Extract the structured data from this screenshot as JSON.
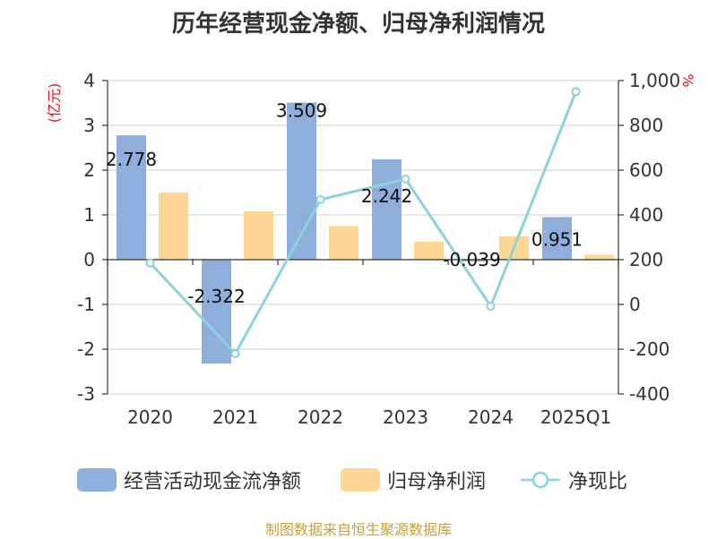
{
  "title": "历年经营现金净额、归母净利润情况",
  "source": "制图数据来自恒生聚源数据库",
  "chart_data": {
    "type": "bar",
    "categories": [
      "2020",
      "2021",
      "2022",
      "2023",
      "2024",
      "2025Q1"
    ],
    "series": [
      {
        "name": "经营活动现金流净额",
        "type": "bar",
        "axis": "left",
        "color": "#8eaedc",
        "values": [
          2.778,
          -2.322,
          3.509,
          2.242,
          -0.039,
          0.951
        ],
        "labels": [
          "2.778",
          "-2.322",
          "3.509",
          "2.242",
          "-0.039",
          "0.951"
        ]
      },
      {
        "name": "归母净利润",
        "type": "bar",
        "axis": "left",
        "color": "#fed796",
        "values": [
          1.5,
          1.08,
          0.75,
          0.4,
          0.52,
          0.11
        ]
      },
      {
        "name": "净现比",
        "type": "line",
        "axis": "right",
        "color": "#8ad3d8",
        "values": [
          185,
          -220,
          468,
          560,
          -8,
          950
        ]
      }
    ],
    "left_axis": {
      "unit": "(亿元)",
      "ylim": [
        -3,
        4
      ],
      "ticks": [
        "4",
        "3",
        "2",
        "1",
        "0",
        "-1",
        "-2",
        "-3"
      ]
    },
    "right_axis": {
      "unit": "%",
      "ylim": [
        -400,
        1000
      ],
      "ticks": [
        "1,000",
        "800",
        "600",
        "400",
        "200",
        "0",
        "-200",
        "-400"
      ]
    },
    "grid": true,
    "legend_position": "bottom"
  }
}
